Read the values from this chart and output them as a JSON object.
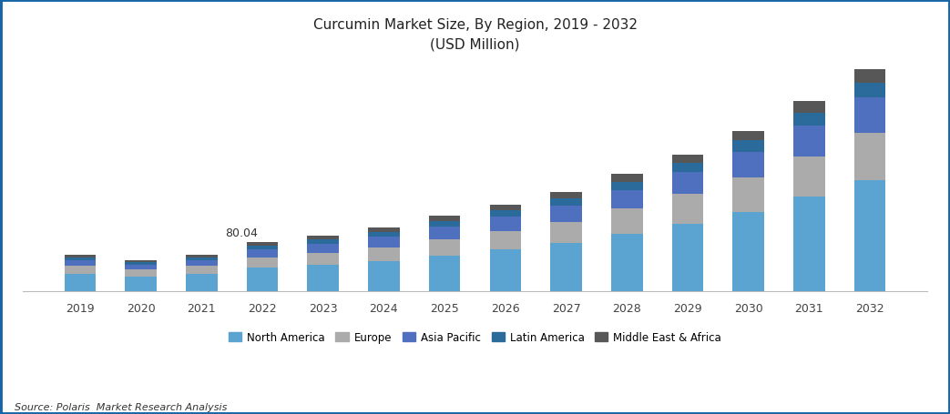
{
  "title_line1": "Curcumin Market Size, By Region, 2019 - 2032",
  "title_line2": "(USD Million)",
  "source": "Source: Polaris  Market Research Analysis",
  "years": [
    2019,
    2020,
    2021,
    2022,
    2023,
    2024,
    2025,
    2026,
    2027,
    2028,
    2029,
    2030,
    2031,
    2032
  ],
  "annotation_year": 2022,
  "annotation_text": "80.04",
  "regions": [
    "North America",
    "Europe",
    "Asia Pacific",
    "Latin America",
    "Middle East & Africa"
  ],
  "colors": [
    "#5BA3D0",
    "#ABABAB",
    "#4F6FBF",
    "#2B6B9C",
    "#575757"
  ],
  "data": {
    "North America": [
      28,
      24,
      29,
      38,
      43,
      49,
      58,
      67,
      78,
      93,
      109,
      128,
      152,
      178
    ],
    "Europe": [
      13,
      11,
      12,
      17,
      19,
      22,
      26,
      30,
      34,
      40,
      47,
      55,
      65,
      76
    ],
    "Asia Pacific": [
      9,
      8,
      9,
      13,
      15,
      17,
      20,
      23,
      26,
      30,
      35,
      41,
      49,
      57
    ],
    "Latin America": [
      5,
      4,
      5,
      6,
      7,
      8,
      9,
      10,
      12,
      13,
      15,
      18,
      21,
      24
    ],
    "Middle East & Africa": [
      4,
      3,
      4,
      6,
      6,
      7,
      8,
      9,
      10,
      12,
      13,
      15,
      18,
      21
    ]
  },
  "ylim": [
    0,
    370
  ],
  "background_color": "#ffffff",
  "border_color": "#1565A7",
  "title_color": "#222222",
  "bar_width": 0.52
}
